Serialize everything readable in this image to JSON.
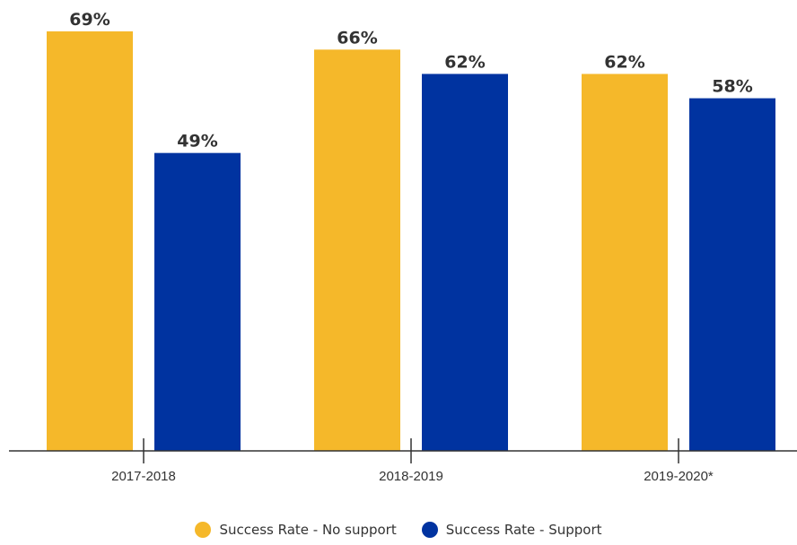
{
  "chart_data": {
    "type": "bar",
    "categories": [
      "2017-2018",
      "2018-2019",
      "2019-2020*"
    ],
    "series": [
      {
        "name": "Success Rate - No support",
        "values": [
          69,
          66,
          62
        ],
        "labels": [
          "69%",
          "66%",
          "62%"
        ],
        "color": "#F5B82A"
      },
      {
        "name": "Success Rate - Support",
        "values": [
          49,
          62,
          58
        ],
        "labels": [
          "49%",
          "62%",
          "58%"
        ],
        "color": "#0033A0"
      }
    ],
    "ylim": [
      0,
      70
    ],
    "grid": false,
    "legend_position": "bottom"
  }
}
